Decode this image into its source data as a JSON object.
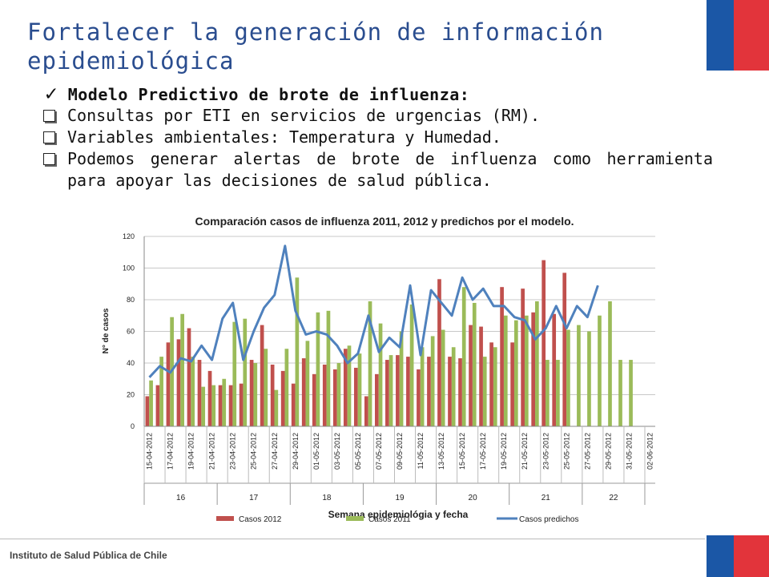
{
  "slide": {
    "title": "Fortalecer la generación de información epidemiológica",
    "subtitle": "Modelo Predictivo de brote de influenza:",
    "check_glyph": "✓",
    "bullets": [
      "Consultas por ETI en servicios de urgencias (RM).",
      "Variables ambientales: Temperatura y Humedad.",
      "Podemos generar alertas de brote de influenza como herramienta para apoyar las decisiones de salud pública."
    ],
    "footer": "Instituto de Salud Pública de Chile",
    "flag_colors": {
      "blue": "#1b57a6",
      "white": "#ffffff",
      "red": "#e2343b"
    }
  },
  "chart_data": {
    "type": "bar",
    "title": "Comparación casos de influenza 2011, 2012 y predichos por el modelo.",
    "ylabel": "N° de casos",
    "xlabel": "Semana epidemiológia y fecha",
    "ylim": [
      0,
      120
    ],
    "yticks": [
      0,
      20,
      40,
      60,
      80,
      100,
      120
    ],
    "grid": true,
    "legend_position": "bottom",
    "date_labels": [
      "15-04-2012",
      "17-04-2012",
      "19-04-2012",
      "21-04-2012",
      "23-04-2012",
      "25-04-2012",
      "27-04-2012",
      "29-04-2012",
      "01-05-2012",
      "03-05-2012",
      "05-05-2012",
      "07-05-2012",
      "09-05-2012",
      "11-05-2012",
      "13-05-2012",
      "15-05-2012",
      "17-05-2012",
      "19-05-2012",
      "21-05-2012",
      "23-05-2012",
      "25-05-2012",
      "27-05-2012",
      "29-05-2012",
      "31-05-2012",
      "02-06-2012"
    ],
    "weeks": [
      {
        "label": "16",
        "days": 7
      },
      {
        "label": "17",
        "days": 7
      },
      {
        "label": "18",
        "days": 7
      },
      {
        "label": "19",
        "days": 7
      },
      {
        "label": "20",
        "days": 7
      },
      {
        "label": "21",
        "days": 7
      },
      {
        "label": "22",
        "days": 6
      }
    ],
    "series": [
      {
        "name": "Casos 2012",
        "kind": "bar",
        "color": "#c0504d",
        "values": [
          19,
          26,
          53,
          55,
          62,
          42,
          35,
          26,
          26,
          27,
          42,
          64,
          39,
          35,
          27,
          43,
          33,
          39,
          36,
          49,
          37,
          19,
          33,
          42,
          45,
          44,
          36,
          44,
          93,
          44,
          43,
          64,
          63,
          53,
          88,
          53,
          87,
          72,
          105,
          71,
          97,
          null,
          null,
          null,
          null,
          null,
          null,
          null,
          null
        ]
      },
      {
        "name": "Casos 2011",
        "kind": "bar",
        "color": "#9bbb59",
        "values": [
          29,
          44,
          69,
          71,
          44,
          25,
          26,
          30,
          66,
          68,
          40,
          49,
          23,
          49,
          94,
          54,
          72,
          73,
          40,
          51,
          46,
          79,
          65,
          45,
          60,
          77,
          50,
          57,
          61,
          50,
          88,
          78,
          44,
          50,
          70,
          67,
          70,
          79,
          42,
          42,
          61,
          64,
          60,
          70,
          79,
          42,
          42,
          null,
          null
        ]
      },
      {
        "name": "Casos predichos",
        "kind": "line",
        "color": "#4f81bd",
        "values": [
          31,
          38,
          34,
          43,
          41,
          51,
          42,
          68,
          78,
          42,
          60,
          75,
          83,
          114,
          73,
          58,
          60,
          58,
          51,
          40,
          46,
          70,
          47,
          56,
          50,
          89,
          45,
          86,
          78,
          70,
          94,
          80,
          87,
          76,
          76,
          69,
          67,
          55,
          62,
          76,
          62,
          76,
          69,
          89,
          null,
          null,
          null,
          null,
          null
        ]
      }
    ]
  }
}
